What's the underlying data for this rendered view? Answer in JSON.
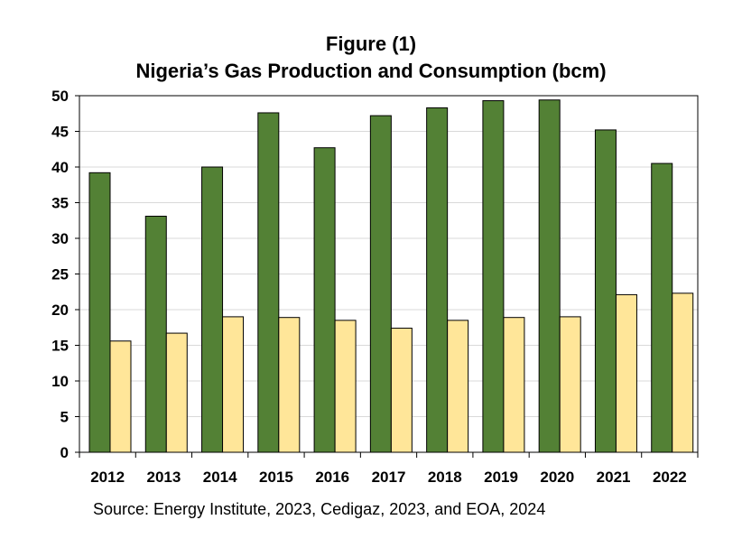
{
  "title_line1": "Figure (1)",
  "title_line2": "Nigeria’s Gas Production and Consumption (bcm)",
  "source": "Source: Energy Institute, 2023, Cedigaz, 2023, and EOA, 2024",
  "colors": {
    "production": "#538135",
    "consumption": "#ffe699",
    "border": "#000000",
    "grid": "#d9d9d9"
  },
  "chart_data": {
    "type": "bar",
    "title": "Nigeria’s Gas Production and Consumption (bcm)",
    "categories": [
      "2012",
      "2013",
      "2014",
      "2015",
      "2016",
      "2017",
      "2018",
      "2019",
      "2020",
      "2021",
      "2022"
    ],
    "series": [
      {
        "values": [
          39.2,
          33.1,
          40.0,
          47.6,
          42.7,
          47.2,
          48.3,
          49.3,
          49.4,
          45.2,
          40.5
        ]
      },
      {
        "values": [
          15.6,
          16.7,
          19.0,
          18.9,
          18.5,
          17.4,
          18.5,
          18.9,
          19.0,
          22.1,
          22.3
        ]
      }
    ],
    "ylim": [
      0,
      50
    ],
    "yticks": [
      "0",
      "5",
      "10",
      "15",
      "20",
      "25",
      "30",
      "35",
      "40",
      "45",
      "50"
    ],
    "grid": true,
    "legend": "none"
  }
}
